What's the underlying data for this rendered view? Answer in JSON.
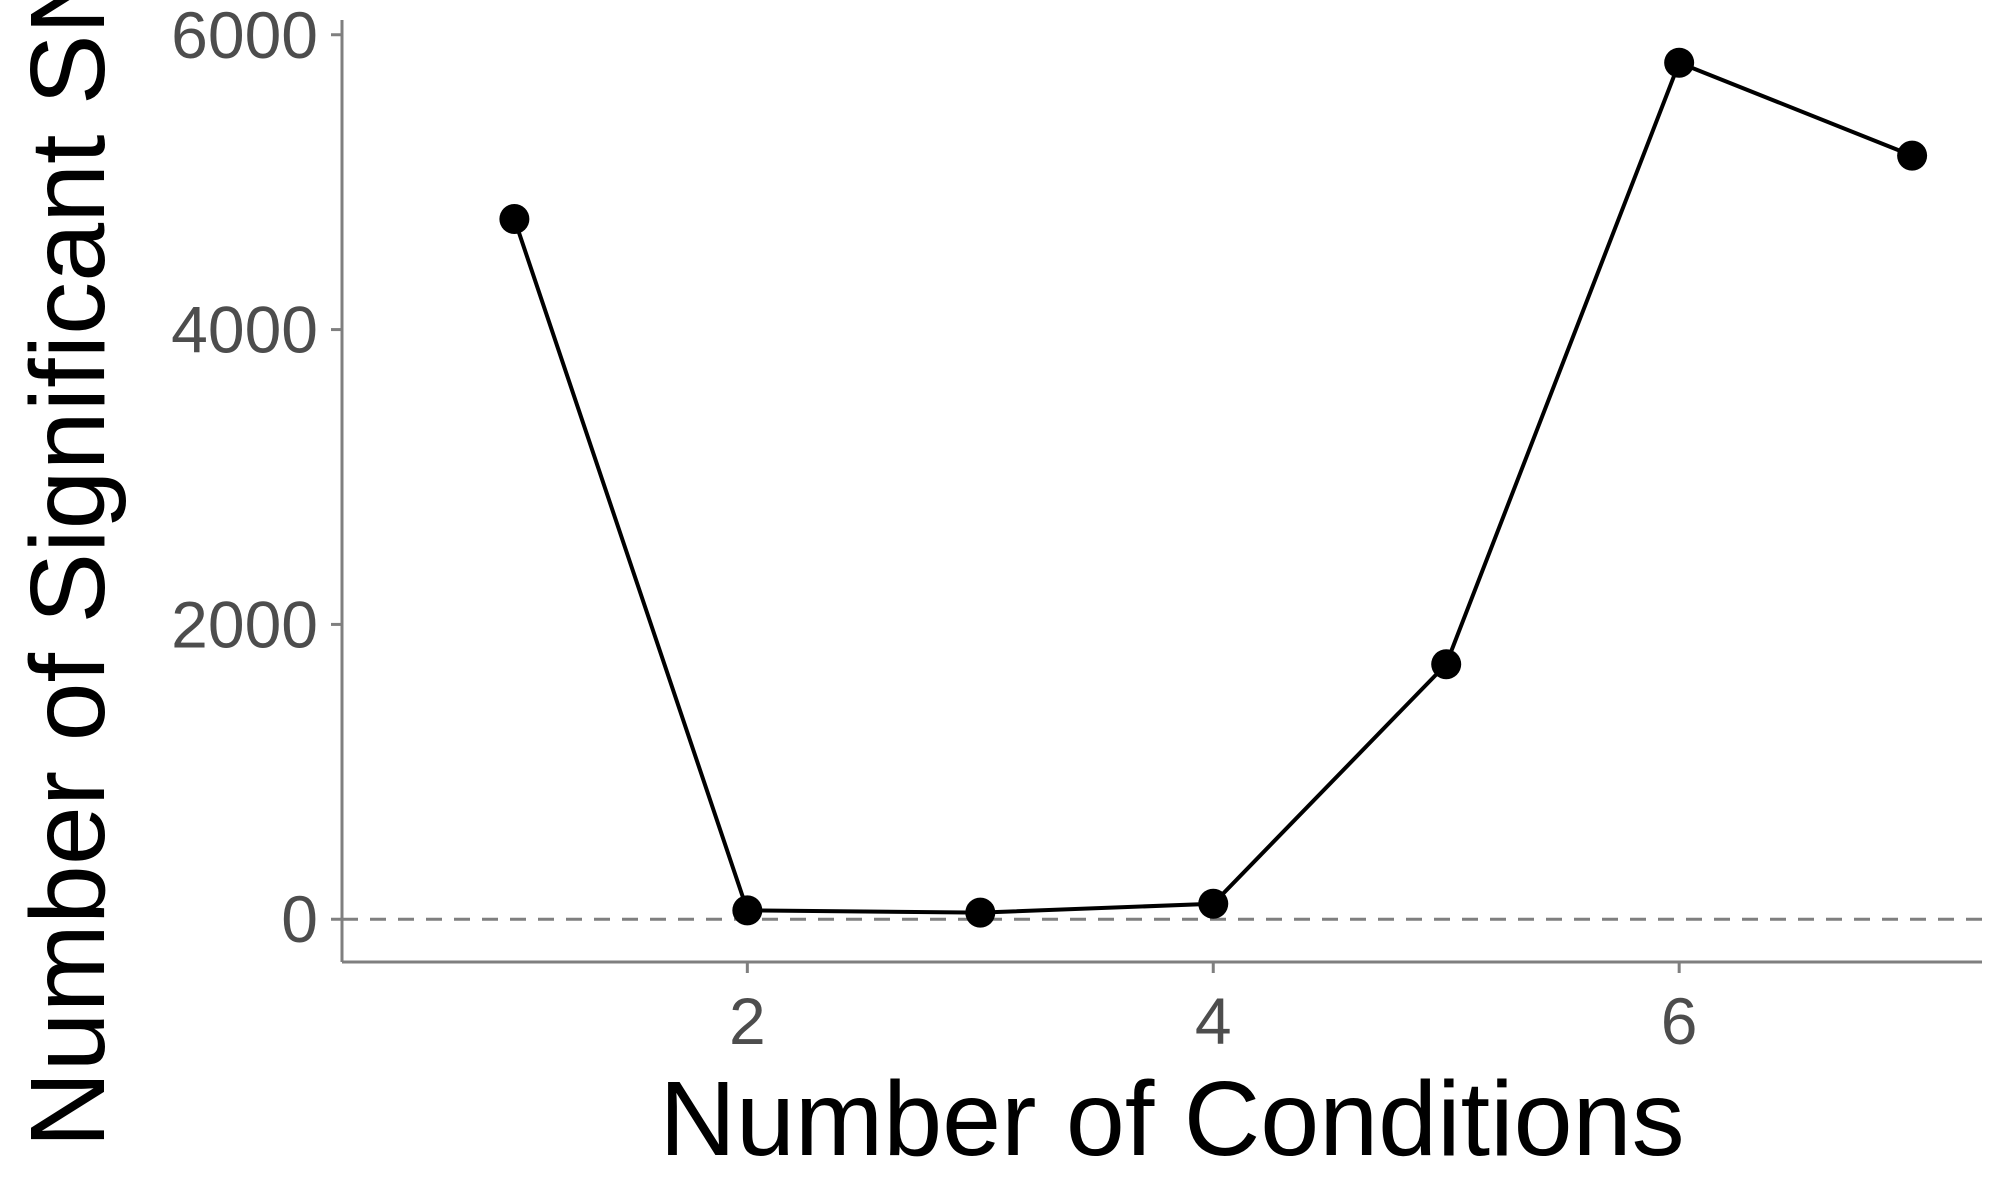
{
  "chart_data": {
    "type": "line",
    "xlabel": "Number of Conditions",
    "ylabel": "Number of Significant SNPs",
    "x": [
      1,
      2,
      3,
      4,
      5,
      6,
      7
    ],
    "series": [
      {
        "values": [
          4750,
          60,
          45,
          105,
          1730,
          5810,
          5180
        ]
      }
    ],
    "xlim": [
      0.26,
      7.3
    ],
    "ylim": [
      -290,
      6100
    ],
    "xticks": [
      2,
      4,
      6
    ],
    "xtick_labels": [
      "2",
      "4",
      "6"
    ],
    "yticks": [
      0,
      2000,
      4000,
      6000
    ],
    "ytick_labels": [
      "0",
      "2000",
      "4000",
      "6000"
    ],
    "reference_line": {
      "y": 0,
      "style": "dashed"
    },
    "grid": false,
    "legend": "none",
    "colors": {
      "line": "#000000",
      "points": "#000000",
      "axis": "#7f7f7f",
      "reference_line": "#7f7f7f",
      "tick_text": "#4d4d4d",
      "title_text": "#000000"
    }
  }
}
